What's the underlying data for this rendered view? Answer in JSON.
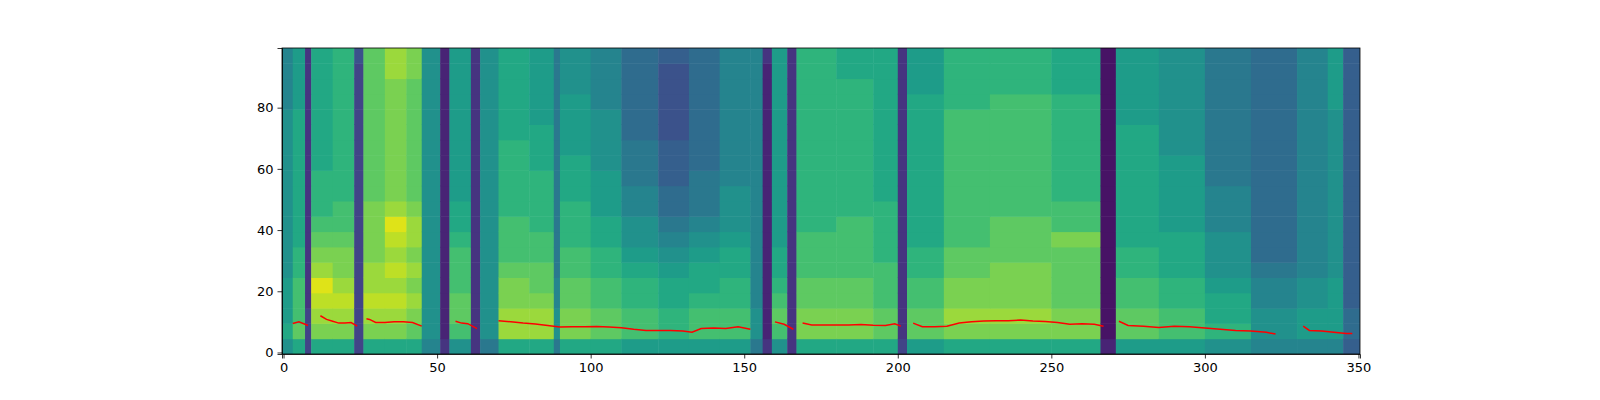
{
  "chart_data": {
    "type": "heatmap",
    "xlim": [
      -0.5,
      350.5
    ],
    "ylim": [
      -0.5,
      99.5
    ],
    "xticks": [
      0,
      50,
      100,
      150,
      200,
      250,
      300,
      350
    ],
    "yticks": [
      0,
      20,
      40,
      60,
      80
    ],
    "zlim": [
      0,
      10
    ],
    "x_edges": [
      -0.5,
      3,
      7,
      9,
      16,
      23,
      26,
      33,
      40,
      45,
      51,
      54,
      61,
      64,
      70,
      80,
      88,
      90,
      100,
      110,
      122,
      132,
      142,
      152,
      156,
      159,
      164,
      167,
      180,
      192,
      200,
      203,
      215,
      230,
      250,
      266,
      271,
      285,
      300,
      315,
      330,
      340,
      345,
      350.5
    ],
    "y_edges": [
      -0.5,
      4.5,
      9.5,
      14.5,
      19.5,
      24.5,
      29.5,
      34.5,
      39.5,
      44.5,
      49.5,
      54.5,
      59.5,
      64.5,
      69.5,
      74.5,
      79.5,
      84.5,
      89.5,
      94.5,
      99.5
    ],
    "z": [
      [
        5,
        6,
        5.5,
        5.5,
        5.5,
        5,
        5,
        5,
        5,
        5,
        5,
        5,
        5,
        5,
        5,
        5,
        4.5,
        4.5,
        4.5,
        4.5
      ],
      [
        6,
        7.5,
        7,
        7,
        7,
        6.5,
        6.5,
        6,
        6,
        6,
        6,
        6,
        6,
        6,
        6,
        6,
        5.5,
        5.5,
        5.5,
        5.5
      ],
      [
        2,
        2,
        2,
        1.5,
        1.5,
        1.5,
        1.5,
        1.5,
        1.5,
        1.5,
        1.5,
        1.5,
        1.5,
        1.5,
        1.5,
        1.5,
        1.5,
        1.5,
        1.5,
        1.5
      ],
      [
        6,
        8,
        8.5,
        9,
        9.5,
        8.5,
        8,
        7.5,
        7,
        6.5,
        6.5,
        6.5,
        6,
        6,
        6,
        6,
        6,
        6,
        6,
        6
      ],
      [
        6,
        8,
        8.5,
        9,
        8.5,
        8,
        8,
        7.5,
        7,
        7,
        6.5,
        6.5,
        6.5,
        6.5,
        6.5,
        6.5,
        6.5,
        6.5,
        6.5,
        6.5
      ],
      [
        2,
        2,
        2,
        2,
        2,
        2,
        2,
        2,
        2,
        2,
        2,
        2,
        2,
        2,
        2,
        2,
        2,
        2,
        2,
        2.5
      ],
      [
        6,
        8,
        8.5,
        9,
        8.5,
        8.5,
        8,
        8,
        8,
        8,
        7.5,
        7.5,
        7.5,
        7.5,
        7.5,
        7.5,
        7.5,
        7.5,
        7.5,
        7.5
      ],
      [
        6,
        8,
        8.5,
        9,
        8.5,
        9,
        8.5,
        9,
        9.5,
        8.5,
        8,
        8,
        8,
        8,
        8,
        8,
        8,
        8,
        8.5,
        8.5
      ],
      [
        6,
        7.5,
        8,
        8.5,
        8,
        8.5,
        8,
        8.5,
        8.5,
        8,
        7.5,
        7.5,
        7.5,
        7.5,
        7.5,
        7.5,
        7.5,
        7.5,
        8,
        8
      ],
      [
        4.5,
        5,
        5,
        5,
        5,
        5,
        5,
        5,
        5,
        5,
        5,
        5,
        5,
        5,
        5,
        5,
        5,
        5,
        5,
        5
      ],
      [
        1.5,
        1,
        1,
        1,
        1,
        1,
        1,
        1,
        1,
        1,
        1,
        1,
        1,
        1,
        1,
        1,
        1,
        1,
        1,
        1
      ],
      [
        5,
        7,
        7.5,
        7.5,
        7,
        7,
        7,
        6.5,
        6,
        6,
        5.5,
        5.5,
        5.5,
        5.5,
        5.5,
        5.5,
        5.5,
        5.5,
        5.5,
        5.5
      ],
      [
        1.5,
        1.5,
        1.5,
        1.5,
        1.5,
        1.5,
        1.5,
        1.5,
        1.5,
        1.5,
        1.5,
        1.5,
        1.5,
        1.5,
        1.5,
        1.5,
        1.5,
        1.5,
        1.5,
        1.5
      ],
      [
        4,
        5,
        5,
        5,
        5,
        5,
        5,
        5,
        5,
        5,
        5,
        5,
        5,
        5,
        5,
        5,
        5,
        5,
        5,
        5
      ],
      [
        6,
        8.5,
        8.5,
        8,
        8,
        7.5,
        7,
        7,
        7,
        6.5,
        6.5,
        6.5,
        6.5,
        6.5,
        6,
        6,
        6,
        6,
        6,
        6
      ],
      [
        6,
        8.5,
        8.5,
        8,
        7.5,
        7.5,
        7,
        7,
        6.5,
        6.5,
        6.5,
        6.5,
        6,
        6,
        6,
        5.5,
        5.5,
        5.5,
        5.5,
        5.5
      ],
      [
        4,
        5,
        5,
        4.5,
        4.5,
        4,
        4,
        4,
        4,
        4,
        4,
        4,
        4,
        4,
        4,
        4,
        4,
        4,
        4,
        4
      ],
      [
        6,
        8,
        8,
        7.5,
        7.5,
        7,
        7,
        6.5,
        6.5,
        6.5,
        6,
        6,
        6,
        5.5,
        5.5,
        5.5,
        5.5,
        5,
        5,
        5
      ],
      [
        6,
        7.5,
        7.5,
        7,
        7,
        6.5,
        6.5,
        6,
        6,
        5.5,
        5.5,
        5.5,
        5,
        5,
        5,
        5,
        4.5,
        4.5,
        4.5,
        4.5
      ],
      [
        5.5,
        7,
        7,
        6.5,
        6.5,
        6,
        5.5,
        5,
        5,
        4.5,
        4.5,
        4,
        4,
        4,
        3.5,
        3.5,
        3.5,
        3.5,
        3.5,
        3.5
      ],
      [
        5.5,
        6.5,
        6.5,
        6,
        6,
        5.5,
        5,
        4.5,
        4,
        3.5,
        3.5,
        3,
        3,
        3,
        2.5,
        2.5,
        2.5,
        2.5,
        2.5,
        3
      ],
      [
        5.5,
        7,
        7,
        6.5,
        6,
        6,
        5.5,
        5,
        4.5,
        4,
        4,
        4,
        3.5,
        3.5,
        3.5,
        3.5,
        3.5,
        3.5,
        3.5,
        3.5
      ],
      [
        5.5,
        7,
        7,
        6.5,
        6.5,
        6,
        6,
        5.5,
        5,
        5,
        5,
        4.5,
        4.5,
        4.5,
        4.5,
        4.5,
        4.5,
        4.5,
        4.5,
        4.5
      ],
      [
        4,
        5,
        5,
        4.5,
        4.5,
        4.5,
        4.5,
        4.5,
        4.5,
        4.5,
        4.5,
        4.5,
        4.5,
        4.5,
        4.5,
        4.5,
        4.5,
        4.5,
        4.5,
        4.5
      ],
      [
        1.5,
        1,
        1,
        1,
        1,
        1,
        1,
        1,
        1,
        1,
        1,
        1,
        1,
        1,
        1,
        1,
        1,
        1,
        1,
        1.5
      ],
      [
        5,
        7,
        7.5,
        7,
        6.5,
        6,
        6,
        5.5,
        5.5,
        5.5,
        5.5,
        5.5,
        5.5,
        5.5,
        5.5,
        5.5,
        5.5,
        5.5,
        5.5,
        5.5
      ],
      [
        1.5,
        1.5,
        1.5,
        1.5,
        1.5,
        1.5,
        1.5,
        1.5,
        1.5,
        1.5,
        1.5,
        1.5,
        1.5,
        1.5,
        1.5,
        1.5,
        1.5,
        1.5,
        1.5,
        1.5
      ],
      [
        6,
        8,
        8,
        7.5,
        7.5,
        7,
        7,
        7,
        6.5,
        6.5,
        6.5,
        6.5,
        6.5,
        6.5,
        6.5,
        6.5,
        6.5,
        6.5,
        6.5,
        6.5
      ],
      [
        6,
        8,
        8,
        7.5,
        7.5,
        7,
        7,
        7,
        7,
        6.5,
        6.5,
        6.5,
        6.5,
        6.5,
        6.5,
        6.5,
        6.5,
        6.5,
        6,
        6
      ],
      [
        6,
        7.5,
        7.5,
        7,
        7,
        7,
        6.5,
        6.5,
        6.5,
        6.5,
        6,
        6,
        6,
        6,
        6,
        6,
        6,
        6,
        6,
        6
      ],
      [
        2,
        1.5,
        1.5,
        1.5,
        1.5,
        1.5,
        1.5,
        1.5,
        1.5,
        1.5,
        1.5,
        1.5,
        1.5,
        1.5,
        1.5,
        1.5,
        1.5,
        1.5,
        1.5,
        1.5
      ],
      [
        5.5,
        7.5,
        7.5,
        7,
        7,
        6.5,
        6.5,
        6,
        6,
        6,
        6,
        6,
        6,
        6,
        6,
        6,
        6,
        5.5,
        5.5,
        5.5
      ],
      [
        6,
        8,
        8.5,
        8,
        8,
        7.5,
        7.5,
        7,
        7,
        7,
        7,
        7,
        7,
        7,
        7,
        7,
        6.5,
        6.5,
        6.5,
        6.5
      ],
      [
        6,
        8,
        8.5,
        8,
        8,
        8,
        7.5,
        7.5,
        7.5,
        7,
        7,
        7,
        7,
        7,
        7,
        7,
        7,
        6.5,
        6.5,
        6.5
      ],
      [
        6,
        8,
        8,
        7.5,
        7.5,
        7.5,
        7.5,
        8,
        7,
        7,
        6.5,
        6.5,
        6.5,
        6.5,
        6.5,
        6.5,
        6.5,
        6,
        6,
        6
      ],
      [
        1,
        0.5,
        0.5,
        0.5,
        0.5,
        0.5,
        0.5,
        0.5,
        0.5,
        0.5,
        0.5,
        0.5,
        0.5,
        0.5,
        0.5,
        0.5,
        0.5,
        0.5,
        0.5,
        0.5
      ],
      [
        5.5,
        7.5,
        7.5,
        7,
        7,
        6.5,
        6.5,
        6,
        6,
        6,
        6,
        6,
        6,
        6,
        6,
        5.5,
        5.5,
        5.5,
        5.5,
        5.5
      ],
      [
        5.5,
        7,
        7,
        6.5,
        6.5,
        6,
        6,
        6,
        5.5,
        5.5,
        5.5,
        5.5,
        5.5,
        5,
        5,
        5,
        5,
        5,
        5,
        5
      ],
      [
        5,
        6.5,
        6,
        6,
        5.5,
        5,
        5,
        5,
        4.5,
        4.5,
        4.5,
        4,
        4,
        4,
        4,
        4,
        4,
        4,
        4,
        4
      ],
      [
        4.5,
        5,
        5,
        4.5,
        4.5,
        4,
        3.5,
        3.5,
        3.5,
        3.5,
        3.5,
        3.5,
        3.5,
        3.5,
        3.5,
        3.5,
        3.5,
        3.5,
        3.5,
        3.5
      ],
      [
        4.5,
        5.5,
        5.5,
        5,
        5,
        4.5,
        4.5,
        4.5,
        4.5,
        4.5,
        4.5,
        4.5,
        4.5,
        4.5,
        4.5,
        4.5,
        4.5,
        4.5,
        4.5,
        4.5
      ],
      [
        4.5,
        5.5,
        5.5,
        5.5,
        5.5,
        5,
        5,
        5,
        5,
        5,
        5,
        5,
        5,
        5,
        5,
        5,
        5.5,
        5.5,
        5.5,
        5.5
      ],
      [
        3,
        3.5,
        3.5,
        3,
        3,
        3,
        3,
        3,
        3,
        3,
        3,
        3,
        3,
        3,
        3,
        3,
        3,
        3,
        3,
        3
      ]
    ],
    "series": [
      {
        "type": "line",
        "color": "#ff0000",
        "x": [
          3,
          5,
          7,
          8,
          10,
          12,
          14,
          16,
          18,
          20,
          22,
          24,
          25.5,
          27,
          28,
          30,
          33,
          36,
          39,
          42,
          45,
          50,
          56,
          58,
          60,
          63,
          66,
          70,
          74,
          78,
          82,
          86,
          90,
          94,
          98,
          102,
          106,
          110,
          114,
          118,
          122,
          126,
          130,
          133,
          136,
          140,
          144,
          148,
          152,
          156,
          160,
          163,
          166,
          167.5,
          169,
          172,
          176,
          180,
          184,
          188,
          192,
          196,
          199,
          201,
          203,
          205,
          208,
          212,
          216,
          220,
          224,
          228,
          232,
          236,
          240,
          244,
          248,
          252,
          256,
          260,
          264,
          267,
          270,
          272,
          275,
          280,
          285,
          290,
          295,
          300,
          305,
          310,
          315,
          320,
          323,
          328,
          332,
          334,
          338,
          342,
          346,
          348
        ],
        "values": [
          9.5,
          10,
          9.2,
          8.8,
          null,
          12,
          10.8,
          10.2,
          9.6,
          9.6,
          9.8,
          8.6,
          null,
          11,
          10.8,
          9.8,
          9.8,
          10,
          10,
          9.8,
          8.6,
          null,
          10.2,
          9.6,
          9.4,
          7.8,
          null,
          10.4,
          10,
          9.6,
          9.3,
          8.8,
          8.3,
          8.4,
          8.4,
          8.5,
          8.3,
          8.1,
          7.6,
          7.2,
          7.2,
          7.2,
          7,
          6.6,
          7.8,
          8,
          7.8,
          8.4,
          7.6,
          null,
          10,
          9.2,
          7.6,
          null,
          9.6,
          9,
          9,
          9,
          9,
          9.1,
          8.9,
          8.8,
          9.4,
          8.6,
          null,
          9.6,
          8.4,
          8.4,
          8.6,
          9.6,
          10,
          10.3,
          10.4,
          10.4,
          10.6,
          10.3,
          10.1,
          9.8,
          9.2,
          9.4,
          9.2,
          8.6,
          null,
          10.2,
          8.8,
          8.6,
          8.2,
          8.6,
          8.4,
          8,
          7.6,
          7.2,
          7,
          6.6,
          6,
          null,
          8.6,
          7.2,
          7,
          6.6,
          6.2,
          6.2
        ]
      }
    ]
  }
}
